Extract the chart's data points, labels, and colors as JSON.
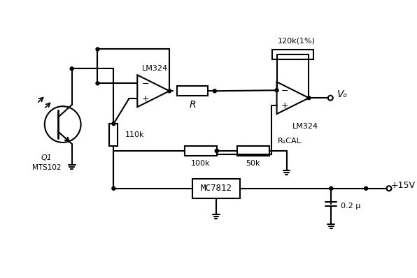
{
  "bg_color": "#ffffff",
  "line_color": "#000000",
  "fig_width": 5.96,
  "fig_height": 3.98,
  "dpi": 100,
  "labels": {
    "lm324_1": "LM324",
    "lm324_2": "LM324",
    "q1": "Q1",
    "mts102": "MTS102",
    "r110k": "110k",
    "r_label": "R",
    "r120k": "120k(1%)",
    "r100k": "100k",
    "r50k": "50k",
    "r_cal": "R₁CAL.",
    "mc7812": "MC7812",
    "cap": "0.2 μ",
    "v15": "+15V",
    "vo": "Vₒ"
  }
}
